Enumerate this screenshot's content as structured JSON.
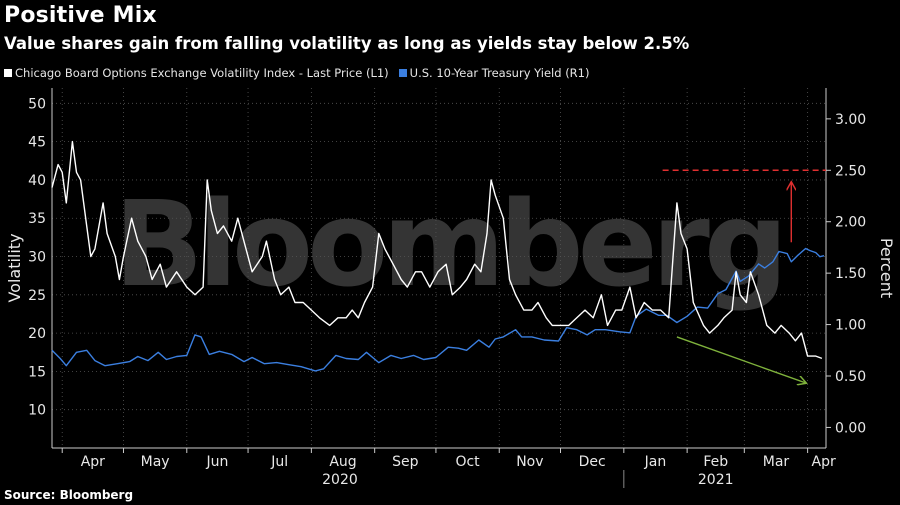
{
  "title": "Positive Mix",
  "subtitle": "Value shares gain from falling volatility as long as yields stay below 2.5%",
  "source": "Source: Bloomberg",
  "watermark": "Bloomberg",
  "legend": [
    {
      "label": "Chicago Board Options Exchange Volatility Index - Last Price (L1)",
      "color": "#ffffff"
    },
    {
      "label": "U.S. 10-Year Treasury Yield (R1)",
      "color": "#3b7fe0"
    }
  ],
  "chart_data": {
    "type": "line",
    "x_unit": "date",
    "ylabel_left": "Volatility",
    "ylabel_right": "Percent",
    "ylim_left": [
      5,
      52
    ],
    "ylim_right": [
      -0.2,
      3.3
    ],
    "yticks_left": [
      "10",
      "15",
      "20",
      "25",
      "30",
      "35",
      "40",
      "45",
      "50"
    ],
    "yticks_right": [
      "0.00",
      "0.50",
      "1.00",
      "1.50",
      "2.00",
      "2.50",
      "3.00"
    ],
    "xlim": [
      "2020-03-27",
      "2021-04-10"
    ],
    "month_labels": [
      {
        "label": "Apr",
        "date": "2020-04-01"
      },
      {
        "label": "May",
        "date": "2020-05-01"
      },
      {
        "label": "Jun",
        "date": "2020-06-01"
      },
      {
        "label": "Jul",
        "date": "2020-07-01"
      },
      {
        "label": "Aug",
        "date": "2020-08-01"
      },
      {
        "label": "Sep",
        "date": "2020-09-01"
      },
      {
        "label": "Oct",
        "date": "2020-10-01"
      },
      {
        "label": "Nov",
        "date": "2020-11-01"
      },
      {
        "label": "Dec",
        "date": "2020-12-01"
      },
      {
        "label": "Jan",
        "date": "2021-01-01"
      },
      {
        "label": "Feb",
        "date": "2021-02-01"
      },
      {
        "label": "Mar",
        "date": "2021-03-01"
      },
      {
        "label": "Apr",
        "date": "2021-04-01"
      }
    ],
    "year_labels": [
      {
        "label": "2020",
        "date": "2020-08-15"
      },
      {
        "label": "2021",
        "date": "2021-02-15"
      }
    ],
    "year_divider": "2021-01-01",
    "grid": true,
    "legend_position": "top-left",
    "series": [
      {
        "name": "Chicago Board Options Exchange Volatility Index - Last Price (L1)",
        "axis": "left",
        "color": "#ffffff",
        "points": [
          [
            "2020-03-27",
            39
          ],
          [
            "2020-03-30",
            42
          ],
          [
            "2020-04-01",
            41
          ],
          [
            "2020-04-03",
            37
          ],
          [
            "2020-04-06",
            45
          ],
          [
            "2020-04-08",
            41
          ],
          [
            "2020-04-10",
            40
          ],
          [
            "2020-04-13",
            34
          ],
          [
            "2020-04-15",
            30
          ],
          [
            "2020-04-17",
            31
          ],
          [
            "2020-04-21",
            37
          ],
          [
            "2020-04-23",
            33
          ],
          [
            "2020-04-27",
            30
          ],
          [
            "2020-04-29",
            27
          ],
          [
            "2020-05-01",
            30
          ],
          [
            "2020-05-05",
            35
          ],
          [
            "2020-05-08",
            32
          ],
          [
            "2020-05-12",
            30
          ],
          [
            "2020-05-15",
            27
          ],
          [
            "2020-05-19",
            29
          ],
          [
            "2020-05-22",
            26
          ],
          [
            "2020-05-27",
            28
          ],
          [
            "2020-06-01",
            26
          ],
          [
            "2020-06-05",
            25
          ],
          [
            "2020-06-09",
            26
          ],
          [
            "2020-06-11",
            40
          ],
          [
            "2020-06-13",
            36
          ],
          [
            "2020-06-16",
            33
          ],
          [
            "2020-06-19",
            34
          ],
          [
            "2020-06-23",
            32
          ],
          [
            "2020-06-26",
            35
          ],
          [
            "2020-06-30",
            31
          ],
          [
            "2020-07-03",
            28
          ],
          [
            "2020-07-08",
            30
          ],
          [
            "2020-07-10",
            32
          ],
          [
            "2020-07-14",
            27
          ],
          [
            "2020-07-17",
            25
          ],
          [
            "2020-07-21",
            26
          ],
          [
            "2020-07-24",
            24
          ],
          [
            "2020-07-28",
            24
          ],
          [
            "2020-08-01",
            23
          ],
          [
            "2020-08-05",
            22
          ],
          [
            "2020-08-10",
            21
          ],
          [
            "2020-08-14",
            22
          ],
          [
            "2020-08-18",
            22
          ],
          [
            "2020-08-21",
            23
          ],
          [
            "2020-08-24",
            22
          ],
          [
            "2020-08-27",
            24
          ],
          [
            "2020-08-31",
            26
          ],
          [
            "2020-09-03",
            33
          ],
          [
            "2020-09-06",
            31
          ],
          [
            "2020-09-10",
            29
          ],
          [
            "2020-09-14",
            27
          ],
          [
            "2020-09-17",
            26
          ],
          [
            "2020-09-21",
            28
          ],
          [
            "2020-09-24",
            28
          ],
          [
            "2020-09-28",
            26
          ],
          [
            "2020-10-02",
            28
          ],
          [
            "2020-10-06",
            29
          ],
          [
            "2020-10-09",
            25
          ],
          [
            "2020-10-13",
            26
          ],
          [
            "2020-10-16",
            27
          ],
          [
            "2020-10-20",
            29
          ],
          [
            "2020-10-23",
            28
          ],
          [
            "2020-10-26",
            33
          ],
          [
            "2020-10-28",
            40
          ],
          [
            "2020-10-30",
            38
          ],
          [
            "2020-11-03",
            35
          ],
          [
            "2020-11-06",
            27
          ],
          [
            "2020-11-09",
            25
          ],
          [
            "2020-11-13",
            23
          ],
          [
            "2020-11-17",
            23
          ],
          [
            "2020-11-20",
            24
          ],
          [
            "2020-11-24",
            22
          ],
          [
            "2020-11-27",
            21
          ],
          [
            "2020-12-02",
            21
          ],
          [
            "2020-12-05",
            21
          ],
          [
            "2020-12-09",
            22
          ],
          [
            "2020-12-13",
            23
          ],
          [
            "2020-12-17",
            22
          ],
          [
            "2020-12-21",
            25
          ],
          [
            "2020-12-24",
            21
          ],
          [
            "2020-12-28",
            23
          ],
          [
            "2020-12-31",
            23
          ],
          [
            "2021-01-04",
            26
          ],
          [
            "2021-01-07",
            22
          ],
          [
            "2021-01-11",
            24
          ],
          [
            "2021-01-15",
            23
          ],
          [
            "2021-01-19",
            23
          ],
          [
            "2021-01-23",
            22
          ],
          [
            "2021-01-27",
            37
          ],
          [
            "2021-01-29",
            33
          ],
          [
            "2021-02-01",
            31
          ],
          [
            "2021-02-04",
            24
          ],
          [
            "2021-02-09",
            21
          ],
          [
            "2021-02-12",
            20
          ],
          [
            "2021-02-16",
            21
          ],
          [
            "2021-02-19",
            22
          ],
          [
            "2021-02-23",
            23
          ],
          [
            "2021-02-25",
            28
          ],
          [
            "2021-02-27",
            25
          ],
          [
            "2021-03-02",
            24
          ],
          [
            "2021-03-04",
            28
          ],
          [
            "2021-03-08",
            25
          ],
          [
            "2021-03-12",
            21
          ],
          [
            "2021-03-16",
            20
          ],
          [
            "2021-03-19",
            21
          ],
          [
            "2021-03-23",
            20
          ],
          [
            "2021-03-26",
            19
          ],
          [
            "2021-03-29",
            20
          ],
          [
            "2021-04-01",
            17
          ],
          [
            "2021-04-05",
            17
          ],
          [
            "2021-04-08",
            16.7
          ]
        ]
      },
      {
        "name": "U.S. 10-Year Treasury Yield (R1)",
        "axis": "right",
        "color": "#3b7fe0",
        "points": [
          [
            "2020-03-27",
            0.75
          ],
          [
            "2020-03-31",
            0.67
          ],
          [
            "2020-04-03",
            0.6
          ],
          [
            "2020-04-08",
            0.73
          ],
          [
            "2020-04-13",
            0.75
          ],
          [
            "2020-04-17",
            0.65
          ],
          [
            "2020-04-22",
            0.6
          ],
          [
            "2020-04-28",
            0.62
          ],
          [
            "2020-05-04",
            0.64
          ],
          [
            "2020-05-08",
            0.69
          ],
          [
            "2020-05-13",
            0.65
          ],
          [
            "2020-05-18",
            0.73
          ],
          [
            "2020-05-22",
            0.66
          ],
          [
            "2020-05-27",
            0.69
          ],
          [
            "2020-06-01",
            0.7
          ],
          [
            "2020-06-05",
            0.9
          ],
          [
            "2020-06-08",
            0.88
          ],
          [
            "2020-06-12",
            0.71
          ],
          [
            "2020-06-17",
            0.74
          ],
          [
            "2020-06-23",
            0.71
          ],
          [
            "2020-06-29",
            0.64
          ],
          [
            "2020-07-03",
            0.68
          ],
          [
            "2020-07-09",
            0.62
          ],
          [
            "2020-07-15",
            0.63
          ],
          [
            "2020-07-21",
            0.61
          ],
          [
            "2020-07-27",
            0.59
          ],
          [
            "2020-08-03",
            0.55
          ],
          [
            "2020-08-07",
            0.57
          ],
          [
            "2020-08-13",
            0.7
          ],
          [
            "2020-08-18",
            0.67
          ],
          [
            "2020-08-24",
            0.66
          ],
          [
            "2020-08-28",
            0.73
          ],
          [
            "2020-09-03",
            0.63
          ],
          [
            "2020-09-09",
            0.7
          ],
          [
            "2020-09-14",
            0.67
          ],
          [
            "2020-09-20",
            0.7
          ],
          [
            "2020-09-25",
            0.66
          ],
          [
            "2020-10-01",
            0.68
          ],
          [
            "2020-10-07",
            0.78
          ],
          [
            "2020-10-12",
            0.77
          ],
          [
            "2020-10-16",
            0.75
          ],
          [
            "2020-10-22",
            0.85
          ],
          [
            "2020-10-27",
            0.78
          ],
          [
            "2020-10-30",
            0.86
          ],
          [
            "2020-11-03",
            0.88
          ],
          [
            "2020-11-09",
            0.95
          ],
          [
            "2020-11-12",
            0.88
          ],
          [
            "2020-11-17",
            0.88
          ],
          [
            "2020-11-23",
            0.85
          ],
          [
            "2020-11-30",
            0.84
          ],
          [
            "2020-12-04",
            0.97
          ],
          [
            "2020-12-09",
            0.95
          ],
          [
            "2020-12-14",
            0.9
          ],
          [
            "2020-12-18",
            0.95
          ],
          [
            "2020-12-23",
            0.95
          ],
          [
            "2020-12-30",
            0.93
          ],
          [
            "2021-01-04",
            0.92
          ],
          [
            "2021-01-07",
            1.08
          ],
          [
            "2021-01-12",
            1.15
          ],
          [
            "2021-01-18",
            1.09
          ],
          [
            "2021-01-22",
            1.09
          ],
          [
            "2021-01-27",
            1.02
          ],
          [
            "2021-02-01",
            1.08
          ],
          [
            "2021-02-06",
            1.17
          ],
          [
            "2021-02-11",
            1.16
          ],
          [
            "2021-02-16",
            1.3
          ],
          [
            "2021-02-20",
            1.34
          ],
          [
            "2021-02-25",
            1.52
          ],
          [
            "2021-02-27",
            1.42
          ],
          [
            "2021-03-03",
            1.47
          ],
          [
            "2021-03-08",
            1.59
          ],
          [
            "2021-03-11",
            1.55
          ],
          [
            "2021-03-15",
            1.61
          ],
          [
            "2021-03-18",
            1.71
          ],
          [
            "2021-03-22",
            1.69
          ],
          [
            "2021-03-24",
            1.61
          ],
          [
            "2021-03-27",
            1.67
          ],
          [
            "2021-03-31",
            1.74
          ],
          [
            "2021-04-02",
            1.72
          ],
          [
            "2021-04-05",
            1.7
          ],
          [
            "2021-04-07",
            1.66
          ],
          [
            "2021-04-09",
            1.67
          ]
        ]
      }
    ],
    "annotations": [
      {
        "name": "threshold-line",
        "type": "hline",
        "axis": "right",
        "y": 2.5,
        "x_from": "2021-01-20",
        "color": "#e03030",
        "dashed": true
      },
      {
        "name": "red-arrow",
        "type": "arrow",
        "axis": "right",
        "from": [
          "2021-03-24",
          1.8
        ],
        "to": [
          "2021-03-24",
          2.38
        ],
        "color": "#e03030"
      },
      {
        "name": "green-arrow",
        "type": "arrow",
        "axis": "left",
        "from": [
          "2021-01-27",
          19.5
        ],
        "to": [
          "2021-03-31",
          13.5
        ],
        "color": "#7fb23c"
      }
    ]
  }
}
